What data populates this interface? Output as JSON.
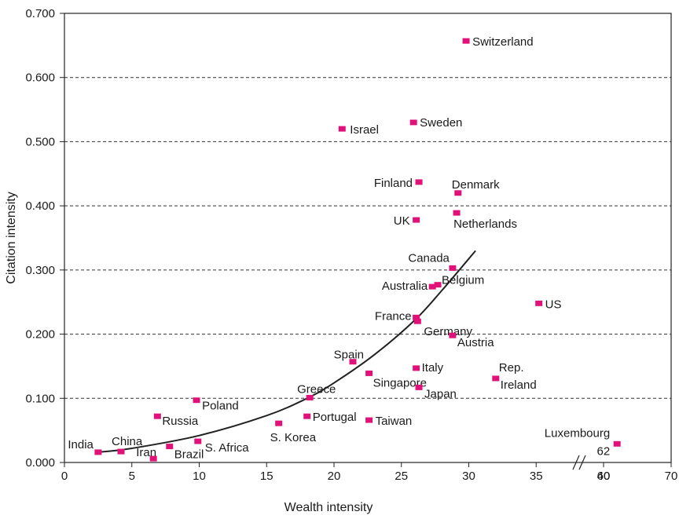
{
  "chart_data": {
    "type": "scatter",
    "xlabel": "Wealth intensity",
    "ylabel": "Citation intensity",
    "x_ticks": [
      "0",
      "5",
      "10",
      "15",
      "20",
      "25",
      "30",
      "35",
      "40",
      "60",
      "70"
    ],
    "y_ticks": [
      "0.000",
      "0.100",
      "0.200",
      "0.300",
      "0.400",
      "0.500",
      "0.600",
      "0.700"
    ],
    "ylim": [
      0,
      0.7
    ],
    "grid": "horizontal dashed",
    "x_axis_break": "between 35 and 60",
    "marker_color": "#e0127a",
    "points": [
      {
        "label": "Switzerland",
        "x": 29.8,
        "y": 0.657
      },
      {
        "label": "Israel",
        "x": 20.6,
        "y": 0.52
      },
      {
        "label": "Sweden",
        "x": 25.9,
        "y": 0.53
      },
      {
        "label": "Finland",
        "x": 26.3,
        "y": 0.437
      },
      {
        "label": "Denmark",
        "x": 29.2,
        "y": 0.42
      },
      {
        "label": "UK",
        "x": 26.1,
        "y": 0.378
      },
      {
        "label": "Netherlands",
        "x": 29.1,
        "y": 0.389
      },
      {
        "label": "Canada",
        "x": 28.8,
        "y": 0.303
      },
      {
        "label": "Belgium",
        "x": 27.7,
        "y": 0.277
      },
      {
        "label": "Australia",
        "x": 27.3,
        "y": 0.274
      },
      {
        "label": "US",
        "x": 35.2,
        "y": 0.248
      },
      {
        "label": "France",
        "x": 26.1,
        "y": 0.226
      },
      {
        "label": "Germany",
        "x": 26.2,
        "y": 0.22
      },
      {
        "label": "Austria",
        "x": 28.8,
        "y": 0.198
      },
      {
        "label": "Spain",
        "x": 21.4,
        "y": 0.157
      },
      {
        "label": "Italy",
        "x": 26.1,
        "y": 0.147
      },
      {
        "label": "Singapore",
        "x": 22.6,
        "y": 0.139
      },
      {
        "label": "Rep. Ireland",
        "x": 32.0,
        "y": 0.131
      },
      {
        "label": "Japan",
        "x": 26.3,
        "y": 0.117
      },
      {
        "label": "Greece",
        "x": 18.2,
        "y": 0.101
      },
      {
        "label": "Poland",
        "x": 9.8,
        "y": 0.097
      },
      {
        "label": "Russia",
        "x": 6.9,
        "y": 0.072
      },
      {
        "label": "Portugal",
        "x": 18.0,
        "y": 0.072
      },
      {
        "label": "Taiwan",
        "x": 22.6,
        "y": 0.066
      },
      {
        "label": "S. Korea",
        "x": 15.9,
        "y": 0.061
      },
      {
        "label": "S. Africa",
        "x": 9.9,
        "y": 0.033
      },
      {
        "label": "Luxembourg",
        "x": 62,
        "y": 0.029
      },
      {
        "label": "Brazil",
        "x": 7.8,
        "y": 0.025
      },
      {
        "label": "China",
        "x": 4.2,
        "y": 0.017
      },
      {
        "label": "India",
        "x": 2.5,
        "y": 0.016
      },
      {
        "label": "Iran",
        "x": 6.6,
        "y": 0.006
      }
    ],
    "luxembourg_value_label": "62",
    "trend_curve": [
      {
        "x": 2.5,
        "y": 0.016
      },
      {
        "x": 5,
        "y": 0.022
      },
      {
        "x": 10,
        "y": 0.042
      },
      {
        "x": 15,
        "y": 0.073
      },
      {
        "x": 18,
        "y": 0.1
      },
      {
        "x": 20,
        "y": 0.124
      },
      {
        "x": 23,
        "y": 0.168
      },
      {
        "x": 26,
        "y": 0.222
      },
      {
        "x": 28,
        "y": 0.268
      },
      {
        "x": 30.5,
        "y": 0.33
      }
    ]
  }
}
